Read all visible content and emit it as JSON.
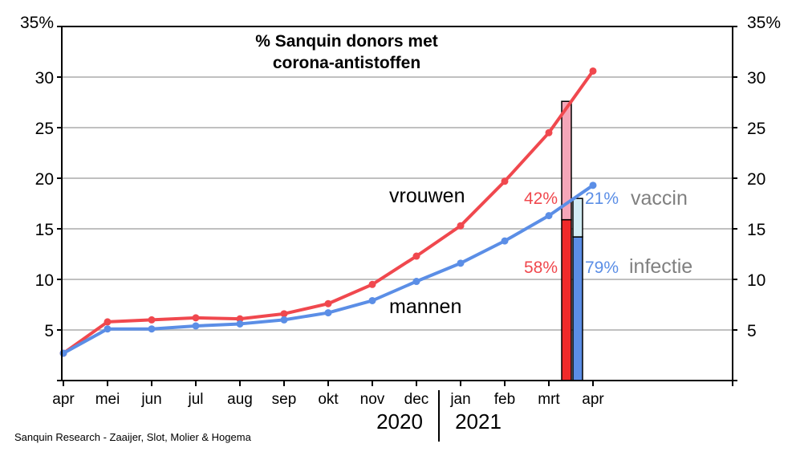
{
  "chart_data": {
    "type": "line",
    "title_line1": "% Sanquin donors met",
    "title_line2": "corona-antistoffen",
    "categories": [
      "apr",
      "mei",
      "jun",
      "jul",
      "aug",
      "sep",
      "okt",
      "nov",
      "dec",
      "jan",
      "feb",
      "mrt",
      "apr"
    ],
    "year_labels": [
      "2020",
      "2021"
    ],
    "ylim": [
      0,
      35
    ],
    "yticks_left": [
      "",
      "5",
      "10",
      "15",
      "20",
      "25",
      "30",
      "35%"
    ],
    "yticks_right": [
      "",
      "5",
      "10",
      "15",
      "20",
      "25",
      "30",
      "35%"
    ],
    "grid": true,
    "series": [
      {
        "name": "vrouwen",
        "color": "#f0484e",
        "values": [
          2.7,
          5.8,
          6.0,
          6.2,
          6.1,
          6.6,
          7.6,
          9.5,
          12.3,
          15.3,
          19.7,
          24.5,
          30.6
        ]
      },
      {
        "name": "mannen",
        "color": "#5b8ee6",
        "values": [
          2.7,
          5.1,
          5.1,
          5.4,
          5.6,
          6.0,
          6.7,
          7.9,
          9.8,
          11.6,
          13.8,
          16.3,
          19.3
        ]
      }
    ],
    "stacked_bars": [
      {
        "group": "vrouwen",
        "total": 27.6,
        "infectie": 15.9,
        "vaccin": 11.7,
        "infectie_label": "58%",
        "vaccin_label": "42%",
        "infectie_color": "#f02a2a",
        "vaccin_color": "#f4a6b8"
      },
      {
        "group": "mannen",
        "total": 18.0,
        "infectie": 14.2,
        "vaccin": 3.8,
        "infectie_label": "79%",
        "vaccin_label": "21%",
        "infectie_color": "#5b8ee6",
        "vaccin_color": "#d2ecf4"
      }
    ],
    "annotations": {
      "vrouwen": "vrouwen",
      "mannen": "mannen",
      "vaccin": "vaccin",
      "infectie": "infectie"
    },
    "colors": {
      "annotation_gray": "#808080",
      "grid": "#c0c0c0",
      "women_label": "#f0484e",
      "men_label": "#5b8ee6"
    }
  },
  "credit": "Sanquin Research - Zaaijer, Slot, Molier & Hogema"
}
